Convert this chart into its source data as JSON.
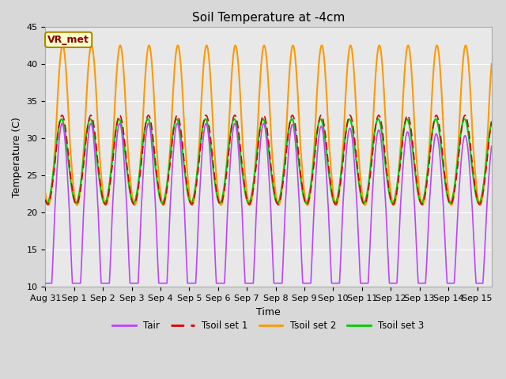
{
  "title": "Soil Temperature at -4cm",
  "xlabel": "Time",
  "ylabel": "Temperature (C)",
  "ylim": [
    10,
    45
  ],
  "xlim_start": 0,
  "xlim_end": 15.5,
  "annotation_text": "VR_met",
  "bg_color": "#d8d8d8",
  "plot_bg": "#e8e8e8",
  "series": {
    "Tair": {
      "color": "#bb44ff",
      "lw": 1.2
    },
    "Tsoil set 1": {
      "color": "#dd0000",
      "lw": 1.2
    },
    "Tsoil set 2": {
      "color": "#ff9900",
      "lw": 1.5
    },
    "Tsoil set 3": {
      "color": "#00cc00",
      "lw": 1.5
    }
  },
  "tick_labels": [
    "Aug 31",
    "Sep 1",
    "Sep 2",
    "Sep 3",
    "Sep 4",
    "Sep 5",
    "Sep 6",
    "Sep 7",
    "Sep 8",
    "Sep 9",
    "Sep 10",
    "Sep 11",
    "Sep 12",
    "Sep 13",
    "Sep 14",
    "Sep 15"
  ],
  "yticks": [
    10,
    15,
    20,
    25,
    30,
    35,
    40,
    45
  ],
  "grid_color": "#ffffff",
  "title_fontsize": 11,
  "axis_fontsize": 9,
  "tick_fontsize": 8
}
